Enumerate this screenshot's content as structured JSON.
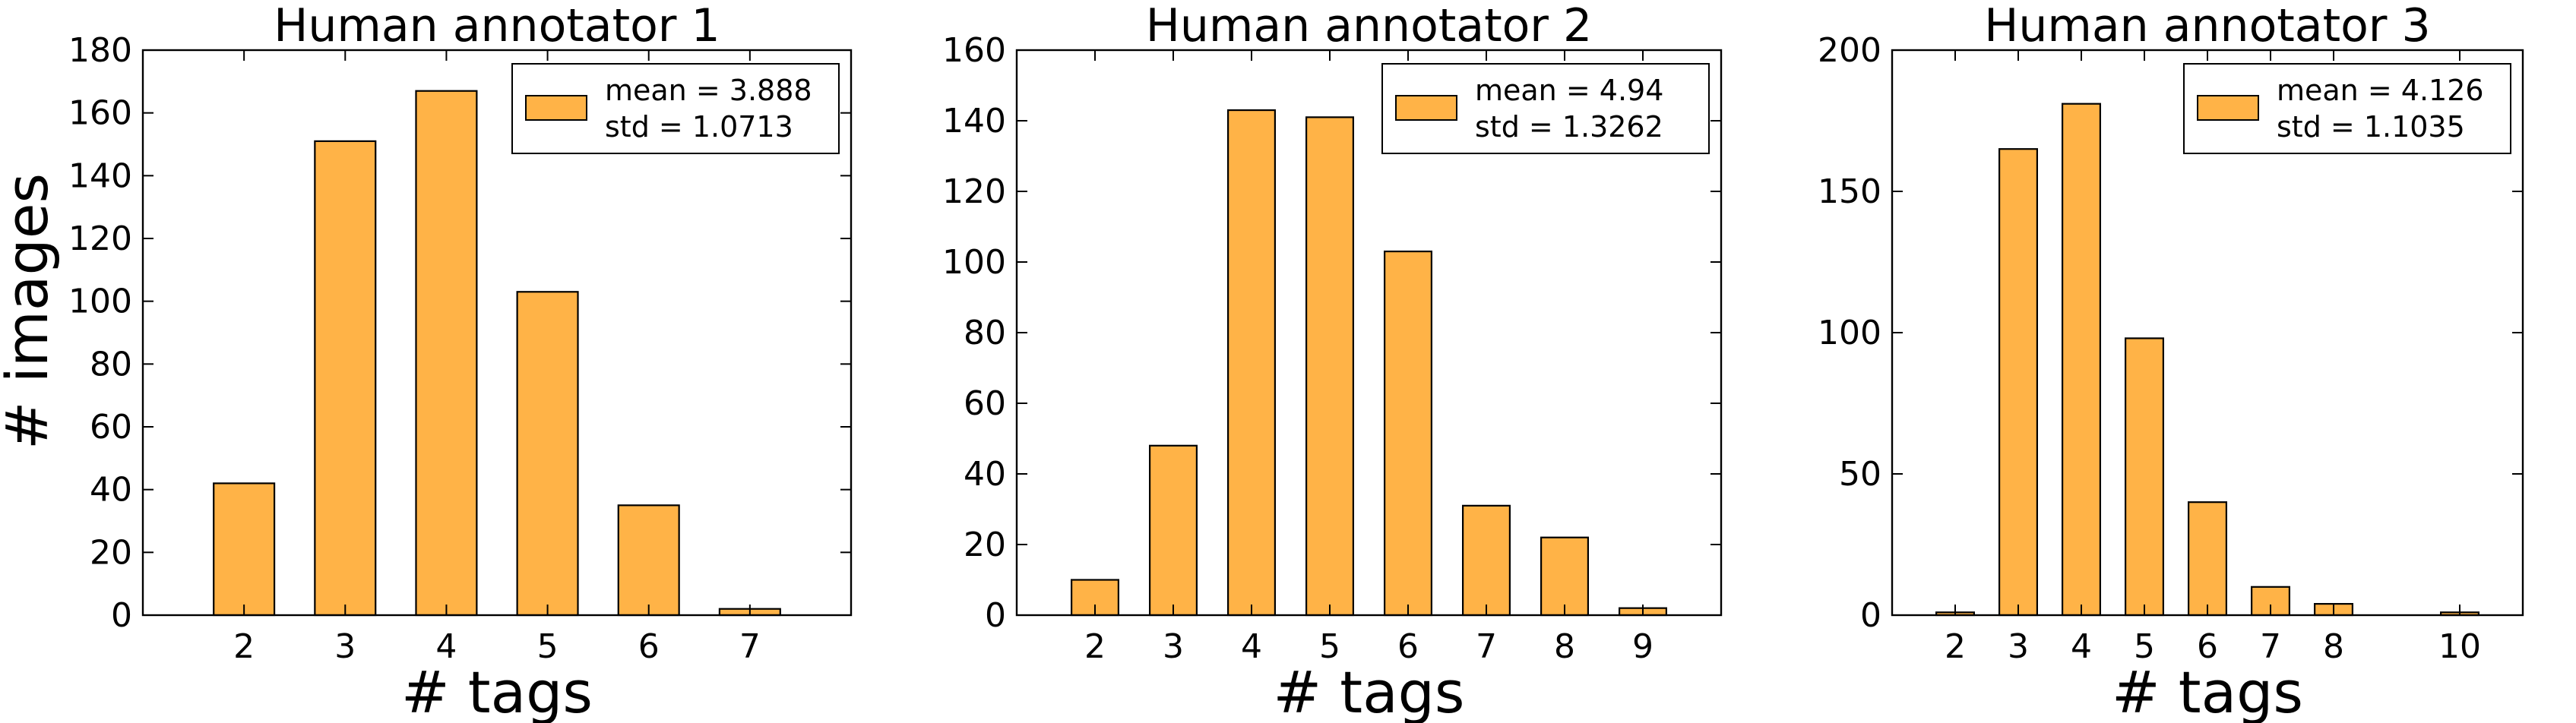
{
  "colors": {
    "bar": "#FFB347",
    "edge": "#000000",
    "background": "#ffffff"
  },
  "ylabel": "# images",
  "chart_data": [
    {
      "type": "bar",
      "title": "Human annotator 1",
      "xlabel": "# tags",
      "ylabel": "# images",
      "xlim": [
        1,
        8
      ],
      "ylim": [
        0,
        180
      ],
      "xticks": [
        2,
        3,
        4,
        5,
        6,
        7
      ],
      "yticks": [
        0,
        20,
        40,
        60,
        80,
        100,
        120,
        140,
        160,
        180
      ],
      "x": [
        2,
        3,
        4,
        5,
        6,
        7
      ],
      "values": [
        42,
        151,
        167,
        103,
        35,
        2
      ],
      "legend": {
        "line1": "mean = 3.888",
        "line2": "std = 1.0713",
        "loc": "upper right"
      }
    },
    {
      "type": "bar",
      "title": "Human annotator 2",
      "xlabel": "# tags",
      "xlim": [
        1,
        10
      ],
      "ylim": [
        0,
        160
      ],
      "xticks": [
        2,
        3,
        4,
        5,
        6,
        7,
        8,
        9
      ],
      "yticks": [
        0,
        20,
        40,
        60,
        80,
        100,
        120,
        140,
        160
      ],
      "x": [
        2,
        3,
        4,
        5,
        6,
        7,
        8,
        9
      ],
      "values": [
        10,
        48,
        143,
        141,
        103,
        31,
        22,
        2
      ],
      "legend": {
        "line1": "mean = 4.94",
        "line2": "std = 1.3262",
        "loc": "upper right"
      }
    },
    {
      "type": "bar",
      "title": "Human annotator 3",
      "xlabel": "# tags",
      "xlim": [
        1,
        11
      ],
      "ylim": [
        0,
        200
      ],
      "xticks": [
        2,
        3,
        4,
        5,
        6,
        7,
        8,
        10
      ],
      "yticks": [
        0,
        50,
        100,
        150,
        200
      ],
      "x": [
        2,
        3,
        4,
        5,
        6,
        7,
        8,
        10
      ],
      "values": [
        1,
        165,
        181,
        98,
        40,
        10,
        4,
        1
      ],
      "legend": {
        "line1": "mean = 4.126",
        "line2": "std = 1.1035",
        "loc": "upper right"
      }
    }
  ]
}
